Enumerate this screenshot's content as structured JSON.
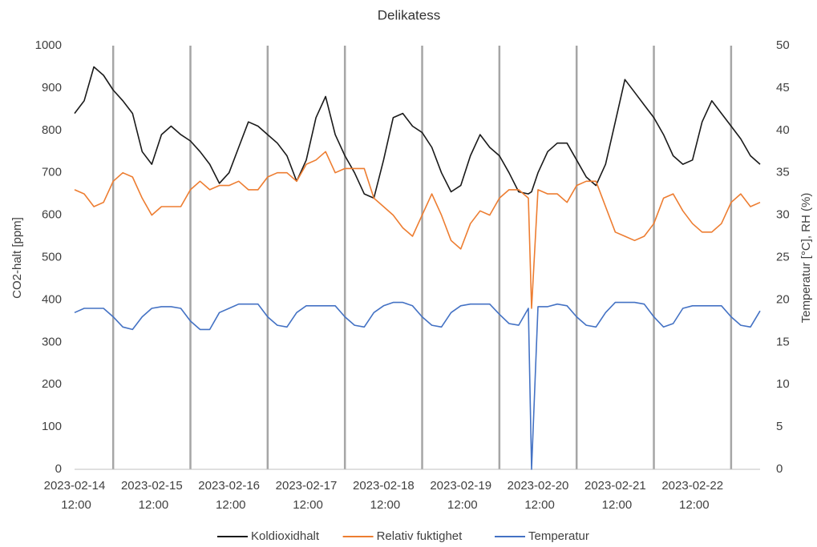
{
  "chart_data": {
    "type": "line",
    "title": "Delikatess",
    "y_label": "CO2-halt [ppm]",
    "y2_label": "Temperatur [°C], RH (%)",
    "xlim": [
      "2023-02-14 12:00",
      "2023-02-23 09:00"
    ],
    "xticks": [
      "2023-02-14 12:00",
      "2023-02-15 12:00",
      "2023-02-16 12:00",
      "2023-02-17 12:00",
      "2023-02-18 12:00",
      "2023-02-19 12:00",
      "2023-02-20 12:00",
      "2023-02-21 12:00",
      "2023-02-22 12:00"
    ],
    "xgrid_lines": [
      "2023-02-15 00:00",
      "2023-02-16 00:00",
      "2023-02-17 00:00",
      "2023-02-18 00:00",
      "2023-02-19 00:00",
      "2023-02-20 00:00",
      "2023-02-21 00:00",
      "2023-02-22 00:00",
      "2023-02-23 00:00"
    ],
    "ylim": [
      0,
      1000
    ],
    "yticks": [
      0,
      100,
      200,
      300,
      400,
      500,
      600,
      700,
      800,
      900,
      1000
    ],
    "y2lim": [
      0,
      50
    ],
    "y2ticks": [
      0,
      5,
      10,
      15,
      20,
      25,
      30,
      35,
      40,
      45,
      50
    ],
    "legend": "bottom",
    "x": [
      "2023-02-14 12:00",
      "2023-02-14 15:00",
      "2023-02-14 18:00",
      "2023-02-14 21:00",
      "2023-02-15 00:00",
      "2023-02-15 03:00",
      "2023-02-15 06:00",
      "2023-02-15 09:00",
      "2023-02-15 12:00",
      "2023-02-15 15:00",
      "2023-02-15 18:00",
      "2023-02-15 21:00",
      "2023-02-16 00:00",
      "2023-02-16 03:00",
      "2023-02-16 06:00",
      "2023-02-16 09:00",
      "2023-02-16 12:00",
      "2023-02-16 15:00",
      "2023-02-16 18:00",
      "2023-02-16 21:00",
      "2023-02-17 00:00",
      "2023-02-17 03:00",
      "2023-02-17 06:00",
      "2023-02-17 09:00",
      "2023-02-17 12:00",
      "2023-02-17 15:00",
      "2023-02-17 18:00",
      "2023-02-17 21:00",
      "2023-02-18 00:00",
      "2023-02-18 03:00",
      "2023-02-18 06:00",
      "2023-02-18 09:00",
      "2023-02-18 12:00",
      "2023-02-18 15:00",
      "2023-02-18 18:00",
      "2023-02-18 21:00",
      "2023-02-19 00:00",
      "2023-02-19 03:00",
      "2023-02-19 06:00",
      "2023-02-19 09:00",
      "2023-02-19 12:00",
      "2023-02-19 15:00",
      "2023-02-19 18:00",
      "2023-02-19 21:00",
      "2023-02-20 00:00",
      "2023-02-20 03:00",
      "2023-02-20 06:00",
      "2023-02-20 09:00",
      "2023-02-20 10:00",
      "2023-02-20 12:00",
      "2023-02-20 15:00",
      "2023-02-20 18:00",
      "2023-02-20 21:00",
      "2023-02-21 00:00",
      "2023-02-21 03:00",
      "2023-02-21 06:00",
      "2023-02-21 09:00",
      "2023-02-21 12:00",
      "2023-02-21 15:00",
      "2023-02-21 18:00",
      "2023-02-21 21:00",
      "2023-02-22 00:00",
      "2023-02-22 03:00",
      "2023-02-22 06:00",
      "2023-02-22 09:00",
      "2023-02-22 12:00",
      "2023-02-22 15:00",
      "2023-02-22 18:00",
      "2023-02-22 21:00",
      "2023-02-23 00:00",
      "2023-02-23 03:00",
      "2023-02-23 06:00",
      "2023-02-23 09:00"
    ],
    "series": [
      {
        "name": "Koldioxidhalt",
        "color": "#1a1a1a",
        "values": [
          840,
          870,
          950,
          930,
          895,
          870,
          840,
          750,
          720,
          790,
          810,
          790,
          775,
          750,
          720,
          675,
          700,
          760,
          820,
          810,
          790,
          770,
          740,
          680,
          730,
          830,
          880,
          790,
          740,
          700,
          650,
          640,
          730,
          830,
          840,
          810,
          795,
          760,
          700,
          655,
          670,
          740,
          790,
          760,
          740,
          700,
          655,
          650,
          655,
          700,
          750,
          770,
          770,
          730,
          690,
          670,
          720,
          820,
          920,
          890,
          860,
          830,
          790,
          740,
          720,
          730,
          820,
          870,
          840,
          810,
          780,
          740,
          720
        ]
      },
      {
        "name": "Relativ fuktighet",
        "color": "#ed7d31",
        "axis": "y2",
        "values": [
          33,
          32.5,
          31,
          31.5,
          34,
          35,
          34.5,
          32,
          30,
          31,
          31,
          31,
          33,
          34,
          33,
          33.5,
          33.5,
          34,
          33,
          33,
          34.5,
          35,
          35,
          34,
          36,
          36.5,
          37.5,
          35,
          35.5,
          35.5,
          35.5,
          32,
          31,
          30,
          28.5,
          27.5,
          30,
          32.5,
          30,
          27,
          26,
          29,
          30.5,
          30,
          32,
          33,
          33,
          32,
          19,
          33,
          32.5,
          32.5,
          31.5,
          33.5,
          34,
          34,
          31,
          28,
          27.5,
          27,
          27.5,
          29,
          32,
          32.5,
          30.5,
          29,
          28,
          28,
          29,
          31.5,
          32.5,
          31,
          31.5
        ]
      },
      {
        "name": "Temperatur",
        "color": "#4472c4",
        "axis": "y2",
        "values": [
          18.5,
          19,
          19,
          19,
          18,
          16.8,
          16.5,
          18,
          19,
          19.2,
          19.2,
          19,
          17.5,
          16.5,
          16.5,
          18.5,
          19,
          19.5,
          19.5,
          19.5,
          18,
          17,
          16.8,
          18.5,
          19.3,
          19.3,
          19.3,
          19.3,
          18,
          17,
          16.8,
          18.5,
          19.3,
          19.7,
          19.7,
          19.3,
          18,
          17,
          16.8,
          18.5,
          19.3,
          19.5,
          19.5,
          19.5,
          18.3,
          17.2,
          17,
          19,
          0,
          19.2,
          19.2,
          19.5,
          19.3,
          18,
          17,
          16.8,
          18.5,
          19.7,
          19.7,
          19.7,
          19.5,
          18,
          16.8,
          17.2,
          19,
          19.3,
          19.3,
          19.3,
          19.3,
          18,
          17,
          16.8,
          18.7
        ]
      }
    ]
  }
}
